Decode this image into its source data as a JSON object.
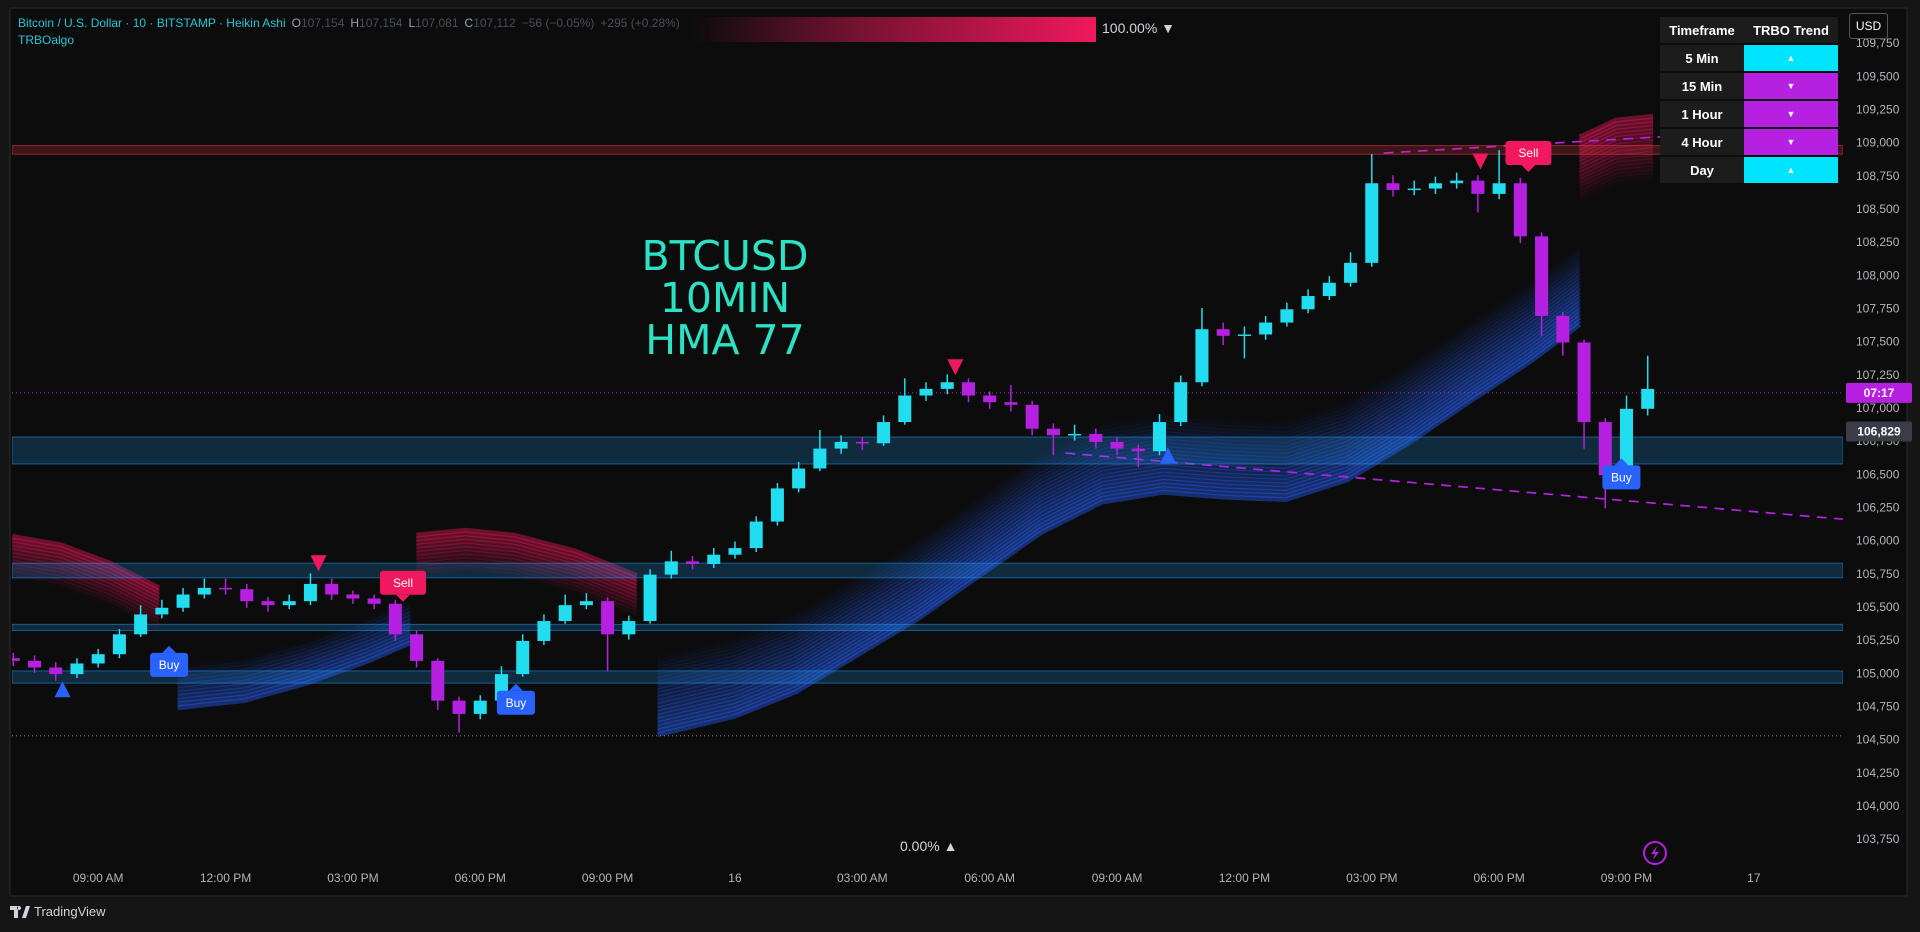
{
  "header": {
    "symbol": "Bitcoin / U.S. Dollar · 10 · BITSTAMP · Heikin Ashi",
    "ohlc": [
      {
        "key": "O",
        "value": "107,154"
      },
      {
        "key": "H",
        "value": "107,154"
      },
      {
        "key": "L",
        "value": "107,081"
      },
      {
        "key": "C",
        "value": "107,112"
      }
    ],
    "change": "−56 (−0.05%)",
    "change_total": "+295 (+0.28%)",
    "indicator": "TRBOalgo",
    "progress_top": "100.00% ▼",
    "progress_bottom": "0.00% ▲",
    "currency": "USD"
  },
  "trend_table": {
    "headers": [
      "Timeframe",
      "TRBO Trend"
    ],
    "rows": [
      {
        "timeframe": "5 Min",
        "trend": "▲",
        "color": "#00e5ff"
      },
      {
        "timeframe": "15 Min",
        "trend": "▼",
        "color": "#b620e0"
      },
      {
        "timeframe": "1 Hour",
        "trend": "▼",
        "color": "#b620e0"
      },
      {
        "timeframe": "4 Hour",
        "trend": "▼",
        "color": "#b620e0"
      },
      {
        "timeframe": "Day",
        "trend": "▲",
        "color": "#00e5ff"
      }
    ]
  },
  "chart_data": {
    "type": "candlestick",
    "annotations": [
      "BTCUSD",
      "10MIN",
      "HMA 77"
    ],
    "up_color": "#22dcef",
    "down_color": "#b620e0",
    "x": [
      -2,
      -1.5,
      -1,
      -0.5,
      0,
      0.5,
      1,
      1.5,
      2,
      2.5,
      3,
      3.5,
      4,
      4.5,
      5,
      5.5,
      6,
      6.5,
      7,
      7.5,
      8,
      8.5,
      9,
      9.5,
      10,
      10.5,
      11,
      11.5,
      12,
      12.5,
      13,
      13.5,
      14,
      14.5,
      15,
      15.5,
      16,
      16.5,
      17,
      17.5,
      18,
      18.5,
      19,
      19.5,
      20,
      20.5,
      21,
      21.5,
      22,
      22.5,
      23,
      23.5,
      24,
      24.5,
      25,
      25.5,
      26,
      26.5,
      27,
      27.5,
      28,
      28.5,
      29,
      29.5,
      30,
      30.5,
      31,
      31.5,
      32,
      32.5,
      33,
      33.5,
      34,
      34.5,
      35,
      35.5,
      36,
      36.5
    ],
    "open": [
      105120,
      105100,
      105050,
      105000,
      105080,
      105150,
      105300,
      105450,
      105500,
      105600,
      105650,
      105640,
      105550,
      105520,
      105550,
      105680,
      105600,
      105570,
      105530,
      105300,
      105100,
      104800,
      104700,
      104800,
      105000,
      105250,
      105400,
      105520,
      105550,
      105300,
      105400,
      105750,
      105850,
      105830,
      105900,
      105950,
      106150,
      106400,
      106550,
      106700,
      106750,
      106740,
      106900,
      107100,
      107150,
      107200,
      107100,
      107050,
      107030,
      106850,
      106800,
      106810,
      106750,
      106700,
      106680,
      106900,
      107200,
      107600,
      107550,
      107560,
      107650,
      107750,
      107850,
      107950,
      108100,
      108700,
      108650,
      108660,
      108700,
      108720,
      108620,
      108700,
      108300,
      107700,
      107500,
      106900,
      106500,
      107000
    ],
    "high": [
      105160,
      105140,
      105090,
      105120,
      105190,
      105340,
      105520,
      105560,
      105650,
      105720,
      105720,
      105680,
      105580,
      105600,
      105760,
      105720,
      105630,
      105600,
      105560,
      105330,
      105120,
      104830,
      104840,
      105060,
      105300,
      105450,
      105600,
      105610,
      105580,
      105440,
      105790,
      105930,
      105890,
      105950,
      106000,
      106190,
      106440,
      106600,
      106840,
      106800,
      106790,
      106950,
      107230,
      107200,
      107260,
      107230,
      107130,
      107180,
      107060,
      106890,
      106880,
      106850,
      106790,
      106730,
      106960,
      107250,
      107760,
      107650,
      107620,
      107700,
      107800,
      107900,
      108000,
      108180,
      108920,
      108760,
      108720,
      108750,
      108780,
      108760,
      108950,
      108740,
      108330,
      107730,
      107520,
      106930,
      107100,
      107400
    ],
    "low": [
      105060,
      105010,
      104950,
      104970,
      105050,
      105120,
      105280,
      105420,
      105470,
      105570,
      105600,
      105500,
      105470,
      105490,
      105520,
      105560,
      105530,
      105490,
      105250,
      105050,
      104730,
      104560,
      104660,
      104770,
      104980,
      105220,
      105380,
      105490,
      105020,
      105260,
      105380,
      105720,
      105790,
      105800,
      105870,
      105920,
      106120,
      106370,
      106530,
      106660,
      106690,
      106720,
      106880,
      107060,
      107110,
      107050,
      107000,
      106980,
      106800,
      106650,
      106760,
      106700,
      106650,
      106560,
      106650,
      106870,
      107170,
      107480,
      107380,
      107520,
      107620,
      107720,
      107820,
      107920,
      108070,
      108600,
      108610,
      108620,
      108660,
      108480,
      108580,
      108250,
      107550,
      107400,
      106700,
      106250,
      106470,
      106950
    ],
    "close": [
      105100,
      105050,
      105000,
      105080,
      105150,
      105300,
      105450,
      105500,
      105600,
      105650,
      105640,
      105550,
      105520,
      105550,
      105680,
      105600,
      105570,
      105530,
      105300,
      105100,
      104800,
      104700,
      104800,
      105000,
      105250,
      105400,
      105520,
      105550,
      105300,
      105400,
      105750,
      105850,
      105830,
      105900,
      105950,
      106150,
      106400,
      106550,
      106700,
      106750,
      106740,
      106900,
      107100,
      107150,
      107200,
      107100,
      107050,
      107030,
      106850,
      106800,
      106810,
      106750,
      106700,
      106680,
      106900,
      107200,
      107600,
      107550,
      107560,
      107650,
      107750,
      107850,
      107950,
      108100,
      108700,
      108650,
      108660,
      108700,
      108720,
      108620,
      108700,
      108300,
      107700,
      107500,
      106900,
      106500,
      107000,
      107150
    ],
    "xlim": [
      -2.03,
      41.1
    ],
    "xticks": [
      {
        "value": 0,
        "label": "09:00 AM"
      },
      {
        "value": 3,
        "label": "12:00 PM"
      },
      {
        "value": 6,
        "label": "03:00 PM"
      },
      {
        "value": 9,
        "label": "06:00 PM"
      },
      {
        "value": 12,
        "label": "09:00 PM"
      },
      {
        "value": 15,
        "label": "16"
      },
      {
        "value": 18,
        "label": "03:00 AM"
      },
      {
        "value": 21,
        "label": "06:00 AM"
      },
      {
        "value": 24,
        "label": "09:00 AM"
      },
      {
        "value": 27,
        "label": "12:00 PM"
      },
      {
        "value": 30,
        "label": "03:00 PM"
      },
      {
        "value": 33,
        "label": "06:00 PM"
      },
      {
        "value": 36,
        "label": "09:00 PM"
      },
      {
        "value": 39,
        "label": "17"
      }
    ],
    "ylim": [
      103335,
      110006
    ],
    "yticks": [
      {
        "value": 103750,
        "label": "103,750"
      },
      {
        "value": 104000,
        "label": "104,000"
      },
      {
        "value": 104250,
        "label": "104,250"
      },
      {
        "value": 104500,
        "label": "104,500"
      },
      {
        "value": 104750,
        "label": "104,750"
      },
      {
        "value": 105000,
        "label": "105,000"
      },
      {
        "value": 105250,
        "label": "105,250"
      },
      {
        "value": 105500,
        "label": "105,500"
      },
      {
        "value": 105750,
        "label": "105,750"
      },
      {
        "value": 106000,
        "label": "106,000"
      },
      {
        "value": 106250,
        "label": "106,250"
      },
      {
        "value": 106500,
        "label": "106,500"
      },
      {
        "value": 106750,
        "label": "106,750"
      },
      {
        "value": 107000,
        "label": "107,000"
      },
      {
        "value": 107250,
        "label": "107,250"
      },
      {
        "value": 107500,
        "label": "107,500"
      },
      {
        "value": 107750,
        "label": "107,750"
      },
      {
        "value": 108000,
        "label": "108,000"
      },
      {
        "value": 108250,
        "label": "108,250"
      },
      {
        "value": 108500,
        "label": "108,500"
      },
      {
        "value": 108750,
        "label": "108,750"
      },
      {
        "value": 109000,
        "label": "109,000"
      },
      {
        "value": 109250,
        "label": "109,250"
      },
      {
        "value": 109500,
        "label": "109,500"
      },
      {
        "value": 109750,
        "label": "109,750"
      }
    ],
    "grid": false,
    "zones": [
      {
        "from": 106584,
        "to": 106787,
        "color": "#2196f3"
      },
      {
        "from": 105726,
        "to": 105836,
        "color": "#2196f3"
      },
      {
        "from": 105329,
        "to": 105375,
        "color": "#2196f3"
      },
      {
        "from": 104932,
        "to": 105024,
        "color": "#2196f3"
      },
      {
        "from": 108919,
        "to": 108984,
        "color": "#f23645"
      }
    ],
    "hlines": [
      {
        "value": 107120,
        "color": "#b620e0"
      },
      {
        "value": 104535,
        "color": "#787b86"
      }
    ],
    "price_labels": [
      {
        "value": 107120,
        "label": "07:17",
        "color": "#b620e0"
      },
      {
        "value": 106829,
        "label": "106,829",
        "color": "#3a3d45"
      }
    ],
    "signals": [
      {
        "label": "Buy",
        "x": 1.67,
        "y": 105070,
        "color": "#2962ff"
      },
      {
        "label": "Buy",
        "x": 9.84,
        "y": 104784,
        "color": "#2962ff"
      },
      {
        "label": "Buy",
        "x": 35.88,
        "y": 106483,
        "color": "#2962ff"
      },
      {
        "label": "Sell",
        "x": 7.18,
        "y": 105689,
        "color": "#f0185e"
      },
      {
        "label": "Sell",
        "x": 33.69,
        "y": 108928,
        "color": "#f0185e"
      }
    ],
    "markers": [
      {
        "x": -0.84,
        "y": 104886,
        "shape": "up",
        "color": "#2962ff"
      },
      {
        "x": 25.2,
        "y": 106649,
        "shape": "up",
        "color": "#2962ff"
      },
      {
        "x": 5.19,
        "y": 105836,
        "shape": "down",
        "color": "#f0185e"
      },
      {
        "x": 20.19,
        "y": 107313,
        "shape": "down",
        "color": "#f0185e"
      },
      {
        "x": 32.56,
        "y": 108864,
        "shape": "down",
        "color": "#f0185e"
      }
    ]
  },
  "footer": {
    "brand": "TradingView"
  }
}
